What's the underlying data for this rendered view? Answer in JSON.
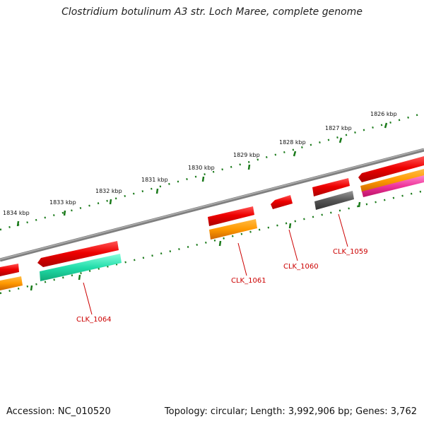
{
  "title": "Clostridium botulinum A3 str. Loch Maree, complete genome",
  "footer": {
    "accession": "Accession: NC_010520",
    "topology": "Topology: circular; Length: 3,992,906 bp; Genes: 3,762"
  },
  "ticks": [
    {
      "label": "1826 kbp"
    },
    {
      "label": "1827 kbp"
    },
    {
      "label": "1828 kbp"
    },
    {
      "label": "1829 kbp"
    },
    {
      "label": "1830 kbp"
    },
    {
      "label": "1831 kbp"
    },
    {
      "label": "1832 kbp"
    },
    {
      "label": "1833 kbp"
    },
    {
      "label": "1834 kbp"
    }
  ],
  "genes": [
    {
      "label": "CLK_1059"
    },
    {
      "label": "CLK_1060"
    },
    {
      "label": "CLK_1061"
    },
    {
      "label": "CLK_1064"
    }
  ],
  "colors": {
    "cds": "#ee1111",
    "orange": "#ff9900",
    "teal": "#22ddaa",
    "gray": "#555555",
    "pink": "#ee3399",
    "backbone": "#7f7f7f",
    "tick": "#1a7a1a",
    "label": "#cc0000"
  }
}
